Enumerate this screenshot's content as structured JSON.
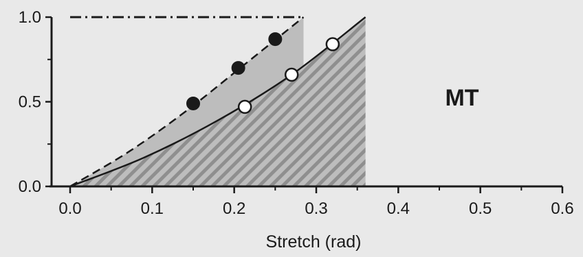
{
  "chart_data": {
    "type": "scatter",
    "xlabel": "Stretch (rad)",
    "ylabel": "",
    "xlim": [
      0.0,
      0.6
    ],
    "ylim": [
      0.0,
      1.0
    ],
    "x_ticks": [
      "0.0",
      "0.1",
      "0.2",
      "0.3",
      "0.4",
      "0.5",
      "0.6"
    ],
    "y_ticks": [
      "0.0",
      "0.5",
      "1.0"
    ],
    "annotation": "MT",
    "grid": false,
    "legend": "none",
    "reference_line": {
      "y": 1.0,
      "style": "dash-dot"
    },
    "series": [
      {
        "marker": "filled-circle",
        "points": [
          {
            "x": 0.15,
            "y": 0.49
          },
          {
            "x": 0.205,
            "y": 0.7
          },
          {
            "x": 0.25,
            "y": 0.87
          }
        ],
        "fit": {
          "style": "dashed",
          "points": [
            [
              0.0,
              0.0
            ],
            [
              0.07,
              0.2
            ],
            [
              0.14,
              0.44
            ],
            [
              0.21,
              0.71
            ],
            [
              0.2845,
              1.0
            ]
          ]
        },
        "shaded_region": {
          "style": "solid-gray",
          "x_range": [
            0.0,
            0.2845
          ]
        }
      },
      {
        "marker": "open-circle",
        "points": [
          {
            "x": 0.213,
            "y": 0.47
          },
          {
            "x": 0.27,
            "y": 0.66
          },
          {
            "x": 0.32,
            "y": 0.84
          }
        ],
        "fit": {
          "style": "solid",
          "points": [
            [
              0.0,
              0.0
            ],
            [
              0.09,
              0.17
            ],
            [
              0.18,
              0.39
            ],
            [
              0.27,
              0.66
            ],
            [
              0.36,
              1.0
            ]
          ]
        },
        "shaded_region": {
          "style": "hatched",
          "x_range": [
            0.0,
            0.36
          ]
        }
      }
    ],
    "colors": {
      "background": "#e9e9e9",
      "gray_fill": "#bdbdbd",
      "hatch": "#8f8f8f",
      "ink": "#1a1a1a",
      "open_marker": "#ffffff"
    }
  }
}
